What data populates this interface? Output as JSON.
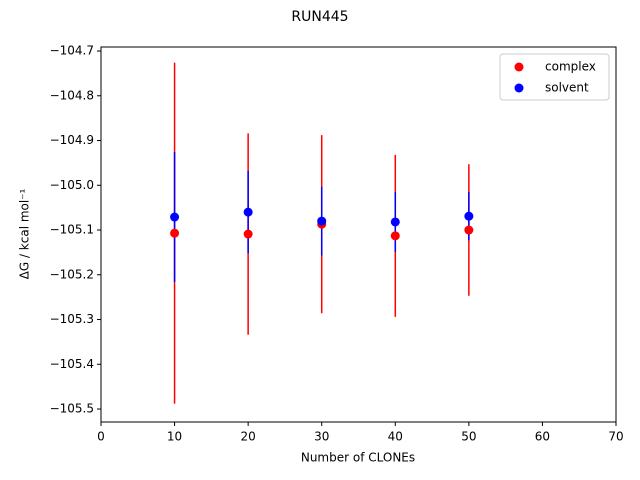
{
  "chart_data": {
    "type": "errorbar-scatter",
    "title": "RUN445",
    "x_label": "Number of CLONEs",
    "y_label": "ΔG / kcal mol⁻¹",
    "x": [
      10,
      20,
      30,
      40,
      50
    ],
    "series": [
      {
        "name": "complex",
        "color": "#ff0000",
        "values": [
          -105.107,
          -105.109,
          -105.087,
          -105.113,
          -105.1
        ],
        "errors": [
          0.381,
          0.225,
          0.199,
          0.181,
          0.147
        ]
      },
      {
        "name": "solvent",
        "color": "#0000ff",
        "values": [
          -105.071,
          -105.06,
          -105.08,
          -105.082,
          -105.069
        ],
        "errors": [
          0.145,
          0.092,
          0.077,
          0.067,
          0.054
        ]
      }
    ],
    "xlim": [
      0,
      70
    ],
    "xticks": [
      0,
      10,
      20,
      30,
      40,
      50,
      60,
      70
    ],
    "ylim": [
      -105.529,
      -104.691
    ],
    "yticks": [
      {
        "value": -104.7,
        "label": "−104.7"
      },
      {
        "value": -104.8,
        "label": "−104.8"
      },
      {
        "value": -104.9,
        "label": "−104.9"
      },
      {
        "value": -105.0,
        "label": "−105.0"
      },
      {
        "value": -105.1,
        "label": "−105.1"
      },
      {
        "value": -105.2,
        "label": "−105.2"
      },
      {
        "value": -105.3,
        "label": "−105.3"
      },
      {
        "value": -105.4,
        "label": "−105.4"
      },
      {
        "value": -105.5,
        "label": "−105.5"
      }
    ],
    "legend": "upper right",
    "grid": false
  }
}
